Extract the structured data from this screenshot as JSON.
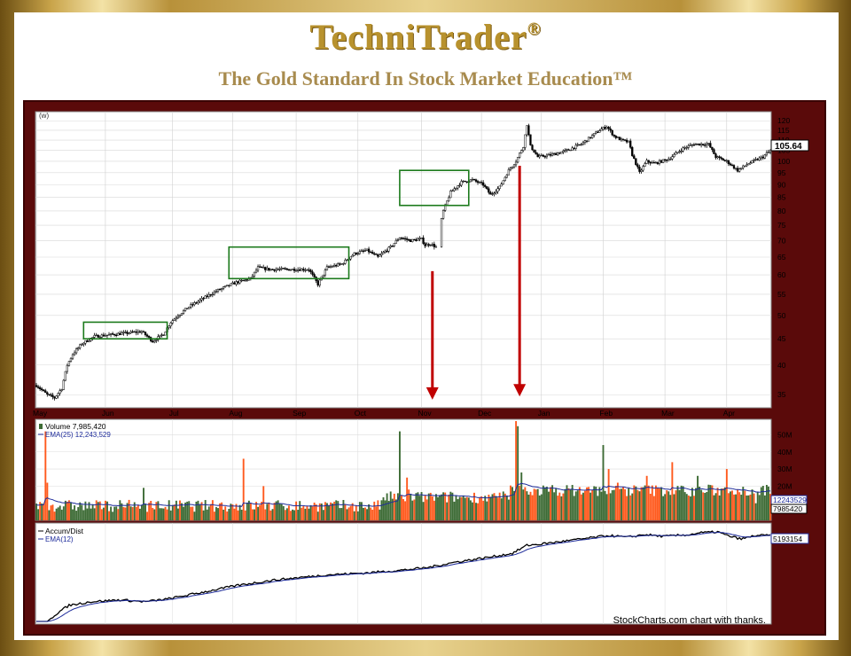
{
  "brand": {
    "name": "TechniTrader",
    "registered": "®",
    "tagline": "The Gold Standard In Stock Market Education™"
  },
  "credit": "StockCharts.com chart with thanks.",
  "colors": {
    "frame": "#5a0a0a",
    "box": "#1c7a1c",
    "arrow": "#c00000",
    "vol_up": "#3d6b35",
    "vol_down": "#ff5a1e",
    "ema": "#1d2b9a"
  },
  "chart_data": [
    {
      "type": "candlestick",
      "corner_label": "(w)",
      "yscale": "log",
      "ylim": [
        33,
        125
      ],
      "yticks": [
        35,
        40,
        45,
        50,
        55,
        60,
        65,
        70,
        75,
        80,
        85,
        90,
        95,
        100,
        105,
        110,
        115,
        120
      ],
      "x_months": [
        "May",
        "Jun",
        "Jul",
        "Aug",
        "Sep",
        "Oct",
        "Nov",
        "Dec",
        "Jan",
        "Feb",
        "Mar",
        "Apr"
      ],
      "last_price_label": "105.64",
      "price_path": [
        [
          0,
          36.5
        ],
        [
          6,
          35
        ],
        [
          10,
          34.5
        ],
        [
          14,
          36
        ],
        [
          17,
          40
        ],
        [
          20,
          42
        ],
        [
          25,
          44
        ],
        [
          32,
          45.5
        ],
        [
          45,
          46
        ],
        [
          58,
          46.5
        ],
        [
          64,
          44.5
        ],
        [
          70,
          46
        ],
        [
          74,
          48.5
        ],
        [
          78,
          50
        ],
        [
          84,
          52
        ],
        [
          92,
          54
        ],
        [
          100,
          56
        ],
        [
          110,
          58
        ],
        [
          118,
          59
        ],
        [
          122,
          62
        ],
        [
          128,
          61.5
        ],
        [
          140,
          61.5
        ],
        [
          150,
          61.5
        ],
        [
          155,
          57.5
        ],
        [
          160,
          62
        ],
        [
          168,
          63
        ],
        [
          175,
          66
        ],
        [
          182,
          67
        ],
        [
          188,
          65
        ],
        [
          195,
          68
        ],
        [
          200,
          71
        ],
        [
          206,
          70
        ],
        [
          212,
          70.5
        ],
        [
          214,
          68.5
        ],
        [
          217,
          69
        ],
        [
          220,
          68
        ],
        [
          224,
          80
        ],
        [
          228,
          87
        ],
        [
          234,
          91
        ],
        [
          240,
          92
        ],
        [
          246,
          90
        ],
        [
          250,
          86
        ],
        [
          255,
          89
        ],
        [
          260,
          96
        ],
        [
          264,
          100
        ],
        [
          268,
          107
        ],
        [
          270,
          118
        ],
        [
          272,
          107
        ],
        [
          276,
          102
        ],
        [
          284,
          103
        ],
        [
          292,
          105
        ],
        [
          300,
          108
        ],
        [
          310,
          115
        ],
        [
          314,
          117
        ],
        [
          318,
          112
        ],
        [
          322,
          110
        ],
        [
          326,
          109
        ],
        [
          328,
          103
        ],
        [
          332,
          95
        ],
        [
          336,
          100
        ],
        [
          340,
          99
        ],
        [
          348,
          101
        ],
        [
          356,
          106
        ],
        [
          362,
          108
        ],
        [
          370,
          108
        ],
        [
          374,
          102
        ],
        [
          380,
          100
        ],
        [
          386,
          96
        ],
        [
          392,
          99
        ],
        [
          400,
          102
        ],
        [
          404,
          105
        ]
      ],
      "boxes": [
        [
          26,
          45,
          72,
          48.5
        ],
        [
          106,
          59,
          172,
          68
        ],
        [
          200,
          82,
          238,
          96
        ]
      ],
      "arrows": [
        {
          "x": 218,
          "from": 61,
          "to": 34.5
        },
        {
          "x": 266,
          "from": 98,
          "to": 35
        }
      ]
    },
    {
      "type": "bar",
      "legend": [
        {
          "label": "Volume 7,985,420"
        },
        {
          "label": "EMA(25) 12,243,529"
        }
      ],
      "yticks": [
        "20M",
        "30M",
        "40M",
        "50M"
      ],
      "yvalues": [
        20,
        30,
        40,
        50
      ],
      "ylim": [
        0,
        58
      ],
      "last_labels": [
        "12243529",
        "7985420"
      ],
      "spikes": [
        {
          "i": 5,
          "v": 52
        },
        {
          "i": 6,
          "v": 22
        },
        {
          "i": 59,
          "v": 19
        },
        {
          "i": 114,
          "v": 36
        },
        {
          "i": 125,
          "v": 20
        },
        {
          "i": 200,
          "v": 52
        },
        {
          "i": 204,
          "v": 25
        },
        {
          "i": 205,
          "v": 18
        },
        {
          "i": 264,
          "v": 58
        },
        {
          "i": 265,
          "v": 55
        },
        {
          "i": 267,
          "v": 28
        },
        {
          "i": 275,
          "v": 18
        },
        {
          "i": 312,
          "v": 44
        },
        {
          "i": 315,
          "v": 30
        },
        {
          "i": 320,
          "v": 22
        },
        {
          "i": 336,
          "v": 26
        },
        {
          "i": 350,
          "v": 34
        },
        {
          "i": 360,
          "v": 14
        },
        {
          "i": 364,
          "v": 26
        },
        {
          "i": 380,
          "v": 30
        },
        {
          "i": 386,
          "v": 18
        },
        {
          "i": 396,
          "v": 10
        }
      ]
    },
    {
      "type": "line",
      "legend": [
        {
          "label": "Accum/Dist"
        },
        {
          "label": "EMA(12)"
        }
      ],
      "last_label": "5193154",
      "ad_path": [
        [
          0,
          0
        ],
        [
          6,
          0
        ],
        [
          9,
          0.05
        ],
        [
          12,
          0.1
        ],
        [
          18,
          0.18
        ],
        [
          30,
          0.22
        ],
        [
          46,
          0.24
        ],
        [
          60,
          0.22
        ],
        [
          72,
          0.25
        ],
        [
          90,
          0.32
        ],
        [
          110,
          0.4
        ],
        [
          130,
          0.46
        ],
        [
          160,
          0.52
        ],
        [
          180,
          0.54
        ],
        [
          200,
          0.57
        ],
        [
          215,
          0.6
        ],
        [
          230,
          0.66
        ],
        [
          250,
          0.72
        ],
        [
          262,
          0.76
        ],
        [
          270,
          0.85
        ],
        [
          276,
          0.86
        ],
        [
          300,
          0.92
        ],
        [
          315,
          0.96
        ],
        [
          325,
          0.94
        ],
        [
          335,
          0.97
        ],
        [
          345,
          0.95
        ],
        [
          360,
          0.97
        ],
        [
          365,
          0.99
        ],
        [
          375,
          1.0
        ],
        [
          380,
          0.96
        ],
        [
          388,
          0.92
        ],
        [
          396,
          0.96
        ],
        [
          404,
          0.96
        ]
      ]
    }
  ]
}
